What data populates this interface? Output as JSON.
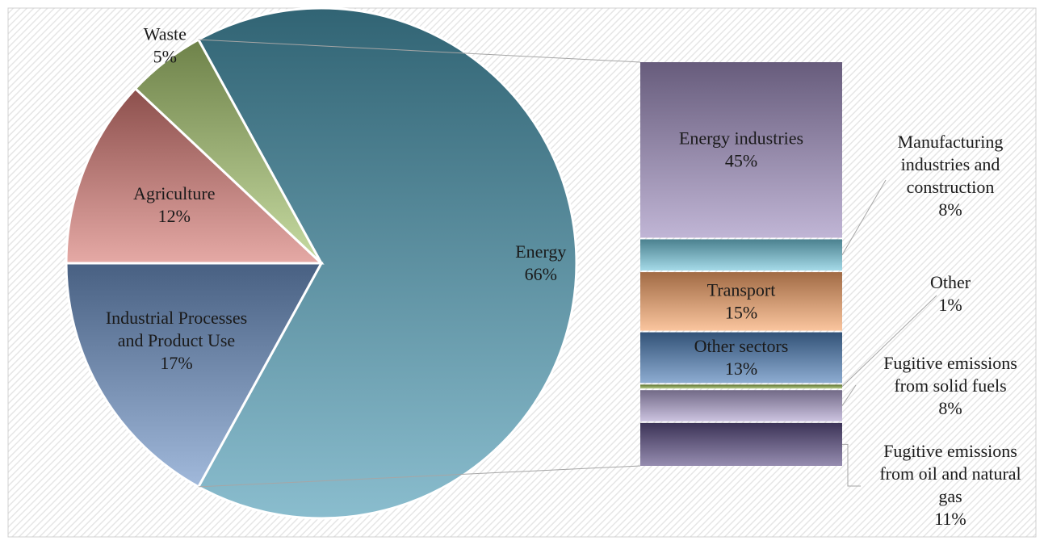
{
  "chart_data": {
    "type": "pie",
    "subtype": "bar-of-pie",
    "title": "",
    "pie": {
      "categories": [
        "Energy",
        "Industrial Processes and Product Use",
        "Agriculture",
        "Waste"
      ],
      "labels": [
        [
          "Energy",
          "66%"
        ],
        [
          "Industrial Processes",
          "and Product Use",
          "17%"
        ],
        [
          "Agriculture",
          "12%"
        ],
        [
          "Waste",
          "5%"
        ]
      ],
      "values": [
        66,
        17,
        12,
        5
      ],
      "colors": [
        "#4b9ab3",
        "#6f93c8",
        "#d77a75",
        "#a9c870"
      ]
    },
    "breakdown_of": "Energy",
    "bar": {
      "categories": [
        "Energy industries",
        "Manufacturing industries and construction",
        "Transport",
        "Other sectors",
        "Other",
        "Fugitive emissions from solid fuels",
        "Fugitive emissions from oil and natural gas"
      ],
      "labels": [
        [
          "Energy industries",
          "45%"
        ],
        [
          "Manufacturing",
          "industries and",
          "construction",
          "8%"
        ],
        [
          "Transport",
          "15%"
        ],
        [
          "Other sectors",
          "13%"
        ],
        [
          "Other",
          "1%"
        ],
        [
          "Fugitive emissions",
          "from solid fuels",
          "8%"
        ],
        [
          "Fugitive emissions",
          "from oil and natural",
          "gas",
          "11%"
        ]
      ],
      "values": [
        45,
        8,
        15,
        13,
        1,
        8,
        11
      ],
      "colors": [
        "#9e8dbf",
        "#74c6dc",
        "#f7a56a",
        "#4f7fb8",
        "#8fb04a",
        "#b0a3cf",
        "#5d4f86"
      ]
    },
    "legend": "none"
  }
}
